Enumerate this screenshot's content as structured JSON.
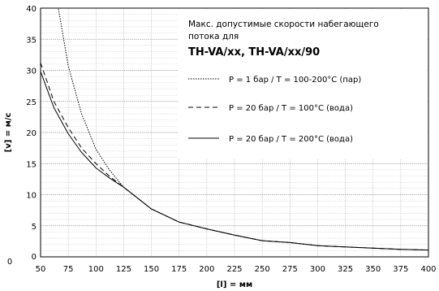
{
  "chart_data": {
    "type": "line",
    "xlabel": "[l] = мм",
    "ylabel": "[v] = м/с",
    "xlim": [
      50,
      400
    ],
    "ylim": [
      0,
      40
    ],
    "x_ticks": [
      50,
      75,
      100,
      125,
      150,
      175,
      200,
      225,
      250,
      275,
      300,
      325,
      350,
      375,
      400
    ],
    "y_ticks": [
      0,
      5,
      10,
      15,
      20,
      25,
      30,
      35,
      40
    ],
    "x_tick_labels": [
      "50",
      "75",
      "100",
      "125",
      "150",
      "175",
      "200",
      "225",
      "250",
      "275",
      "300",
      "325",
      "350",
      "375",
      "400"
    ],
    "y_tick_labels": [
      "0",
      "5",
      "10",
      "15",
      "20",
      "25",
      "30",
      "35",
      "40"
    ],
    "origin_label": "0",
    "grid": true,
    "legend": {
      "placement": "top-right",
      "title_line1": "Макс. допустимые скорости набегающего",
      "title_line2": "потока для",
      "model": "TH-VA/xx, TH-VA/xx/90"
    },
    "series": [
      {
        "name": "P =   1 бар / T = 100-200°C (пар)",
        "style": "dotted",
        "x": [
          50,
          66,
          75,
          87,
          100,
          112,
          125,
          150,
          175,
          200,
          225,
          250,
          275,
          300,
          325,
          350,
          375,
          400
        ],
        "y": [
          45,
          40,
          30.7,
          23,
          17.3,
          14,
          11.2,
          7.7,
          5.6,
          4.5,
          3.5,
          2.6,
          2.3,
          1.8,
          1.6,
          1.4,
          1.2,
          1.1
        ]
      },
      {
        "name": "P = 20 бар / T = 100°C  (вода)",
        "style": "dashed",
        "x": [
          50,
          62,
          75,
          87,
          100,
          112,
          125,
          150,
          175,
          200,
          225,
          250,
          275,
          300,
          325,
          350,
          375,
          400
        ],
        "y": [
          31.2,
          25,
          20.8,
          17.5,
          15,
          13,
          11.2,
          7.7,
          5.6,
          4.5,
          3.5,
          2.6,
          2.3,
          1.8,
          1.6,
          1.4,
          1.2,
          1.1
        ]
      },
      {
        "name": "P = 20 бар / T = 200°C  (вода)",
        "style": "solid",
        "x": [
          50,
          62,
          75,
          87,
          100,
          112,
          125,
          150,
          175,
          200,
          225,
          250,
          275,
          300,
          325,
          350,
          375,
          400
        ],
        "y": [
          29.8,
          24,
          19.8,
          16.8,
          14.3,
          12.7,
          11.2,
          7.7,
          5.6,
          4.5,
          3.5,
          2.6,
          2.3,
          1.8,
          1.6,
          1.4,
          1.2,
          1.1
        ]
      }
    ]
  }
}
